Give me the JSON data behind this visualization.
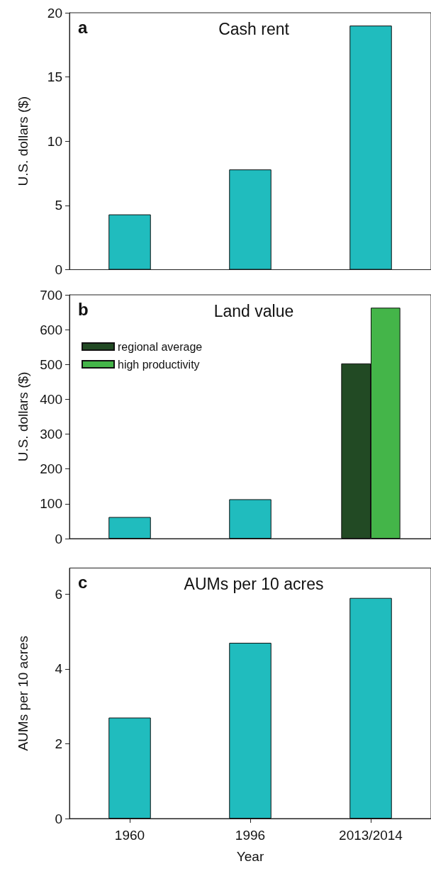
{
  "chart_data": [
    {
      "type": "bar",
      "title": "Cash rent",
      "annotations": [
        "a"
      ],
      "ylabel": "U.S. dollars ($)",
      "categories": [
        null,
        null,
        null
      ],
      "values": [
        4.3,
        7.8,
        19
      ],
      "color": "#20bcbe",
      "ylim": [
        0,
        20
      ],
      "yticks": [
        0,
        5,
        10,
        15,
        20
      ],
      "tick_labels": "y"
    },
    {
      "type": "bar",
      "title": "Land value",
      "annotations": [
        "b"
      ],
      "ylabel": "U.S. dollars ($)",
      "categories": [
        null,
        null,
        null
      ],
      "series": [
        {
          "values": [
            62,
            113,
            null
          ],
          "color": "#20bcbe"
        },
        {
          "name": "regional average",
          "values": [
            null,
            null,
            503
          ],
          "color": "#224a24"
        },
        {
          "name": "high productivity",
          "values": [
            null,
            null,
            663
          ],
          "color": "#44b549"
        }
      ],
      "legend": "top left",
      "ylim": [
        0,
        700
      ],
      "yticks": [
        0,
        100,
        200,
        300,
        400,
        500,
        600,
        700
      ],
      "tick_labels": "y"
    },
    {
      "type": "bar",
      "title": "AUMs per 10 acres",
      "annotations": [
        "c"
      ],
      "xlabel": "Year",
      "ylabel": "AUMs per 10 acres",
      "categories": [
        "1960",
        "1996",
        "2013/2014"
      ],
      "values": [
        2.7,
        4.7,
        5.9
      ],
      "color": "#20bcbe",
      "ylim": [
        0,
        6.7
      ],
      "yticks": [
        0,
        2,
        4,
        6
      ]
    }
  ]
}
